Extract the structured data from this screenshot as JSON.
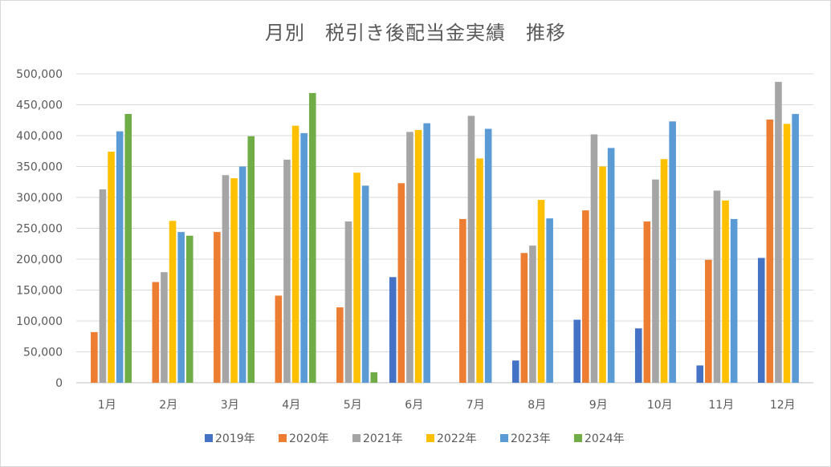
{
  "chart_data": {
    "type": "bar",
    "title": "月別　税引き後配当金実績　推移",
    "xlabel": "",
    "ylabel": "",
    "ylim": [
      0,
      500000
    ],
    "y_ticks": [
      "0",
      "50,000",
      "100,000",
      "150,000",
      "200,000",
      "250,000",
      "300,000",
      "350,000",
      "400,000",
      "450,000",
      "500,000"
    ],
    "y_tick_values": [
      0,
      50000,
      100000,
      150000,
      200000,
      250000,
      300000,
      350000,
      400000,
      450000,
      500000
    ],
    "grid": true,
    "legend_position": "bottom",
    "categories": [
      "1月",
      "2月",
      "3月",
      "4月",
      "5月",
      "6月",
      "7月",
      "8月",
      "9月",
      "10月",
      "11月",
      "12月"
    ],
    "series": [
      {
        "name": "2019年",
        "color": "#4472c4",
        "values": [
          0,
          0,
          0,
          0,
          0,
          171000,
          0,
          36000,
          102000,
          88000,
          28000,
          202000
        ]
      },
      {
        "name": "2020年",
        "color": "#ed7d31",
        "values": [
          82000,
          163000,
          244000,
          141000,
          122000,
          323000,
          265000,
          210000,
          279000,
          261000,
          199000,
          426000
        ]
      },
      {
        "name": "2021年",
        "color": "#a5a5a5",
        "values": [
          313000,
          179000,
          336000,
          361000,
          261000,
          406000,
          432000,
          222000,
          402000,
          329000,
          311000,
          487000
        ]
      },
      {
        "name": "2022年",
        "color": "#ffc000",
        "values": [
          374000,
          262000,
          331000,
          416000,
          340000,
          409000,
          363000,
          296000,
          350000,
          362000,
          295000,
          419000
        ]
      },
      {
        "name": "2023年",
        "color": "#5b9bd5",
        "values": [
          407000,
          244000,
          350000,
          404000,
          319000,
          420000,
          411000,
          266000,
          380000,
          423000,
          265000,
          435000
        ]
      },
      {
        "name": "2024年",
        "color": "#70ad47",
        "values": [
          435000,
          238000,
          399000,
          469000,
          17000,
          0,
          0,
          0,
          0,
          0,
          0,
          0
        ]
      }
    ]
  }
}
